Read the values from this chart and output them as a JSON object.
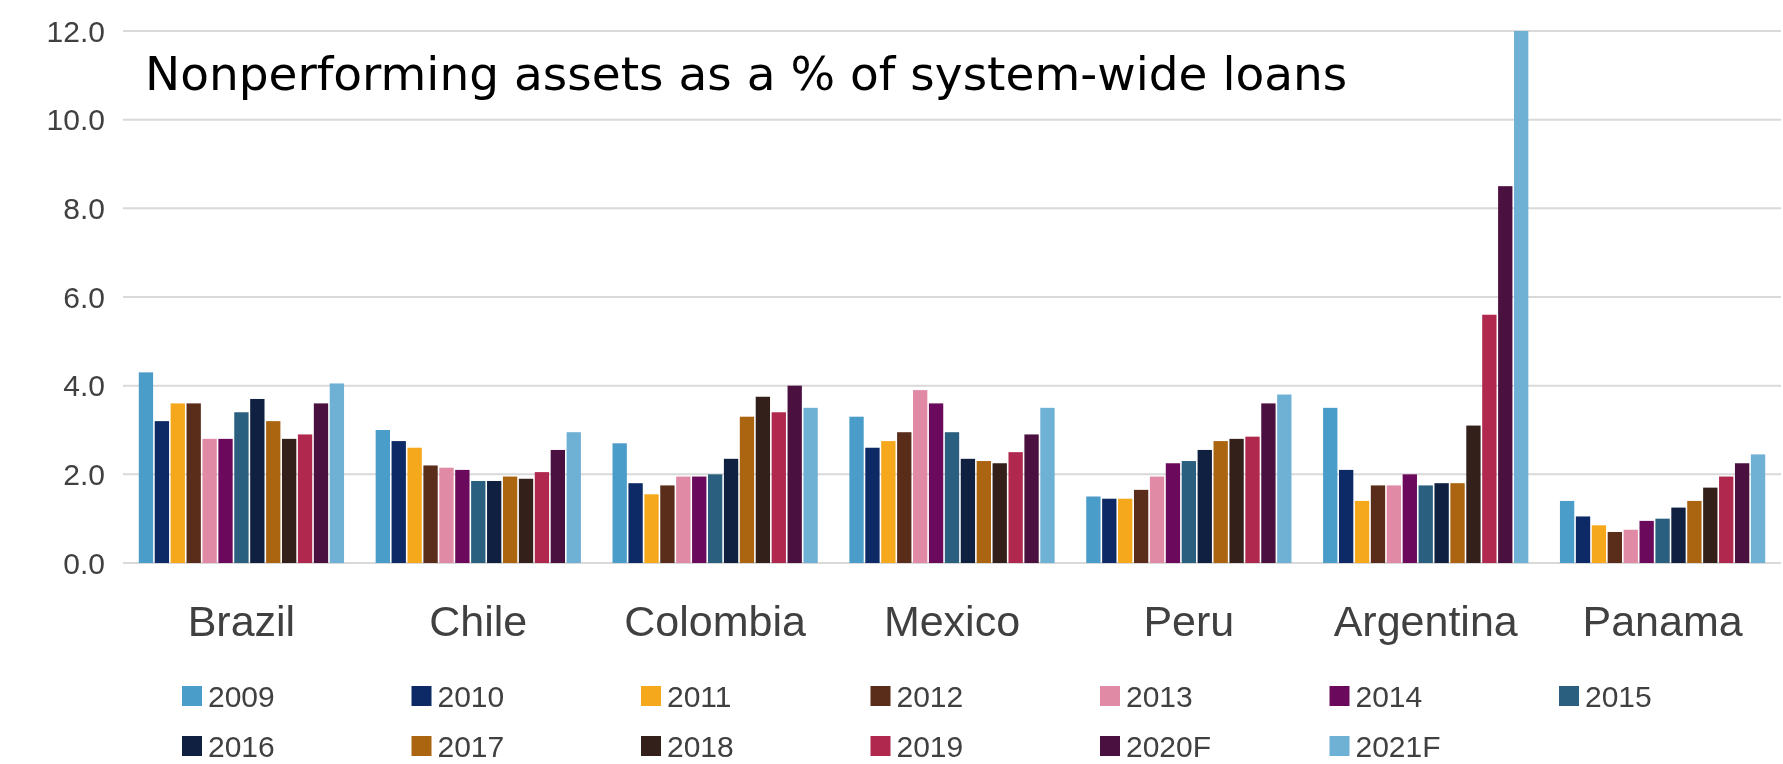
{
  "chart_data": {
    "type": "bar",
    "title": "Nonperforming assets as a % of system-wide loans",
    "categories": [
      "Brazil",
      "Chile",
      "Colombia",
      "Mexico",
      "Peru",
      "Argentina",
      "Panama"
    ],
    "series": [
      {
        "name": "2009",
        "color": "#4a9cc9",
        "values": [
          4.3,
          3.0,
          2.7,
          3.3,
          1.5,
          3.5,
          1.4
        ]
      },
      {
        "name": "2010",
        "color": "#0d2a66",
        "values": [
          3.2,
          2.75,
          1.8,
          2.6,
          1.45,
          2.1,
          1.05
        ]
      },
      {
        "name": "2011",
        "color": "#f5a81c",
        "values": [
          3.6,
          2.6,
          1.55,
          2.75,
          1.45,
          1.4,
          0.85
        ]
      },
      {
        "name": "2012",
        "color": "#5a2c1a",
        "values": [
          3.6,
          2.2,
          1.75,
          2.95,
          1.65,
          1.75,
          0.7
        ]
      },
      {
        "name": "2013",
        "color": "#e08aa6",
        "values": [
          2.8,
          2.15,
          1.95,
          3.9,
          1.95,
          1.75,
          0.75
        ]
      },
      {
        "name": "2014",
        "color": "#6b0a5c",
        "values": [
          2.8,
          2.1,
          1.95,
          3.6,
          2.25,
          2.0,
          0.95
        ]
      },
      {
        "name": "2015",
        "color": "#2a5f80",
        "values": [
          3.4,
          1.85,
          2.0,
          2.95,
          2.3,
          1.75,
          1.0
        ]
      },
      {
        "name": "2016",
        "color": "#0f2040",
        "values": [
          3.7,
          1.85,
          2.35,
          2.35,
          2.55,
          1.8,
          1.25
        ]
      },
      {
        "name": "2017",
        "color": "#ab6410",
        "values": [
          3.2,
          1.95,
          3.3,
          2.3,
          2.75,
          1.8,
          1.4
        ]
      },
      {
        "name": "2018",
        "color": "#33201a",
        "values": [
          2.8,
          1.9,
          3.75,
          2.25,
          2.8,
          3.1,
          1.7
        ]
      },
      {
        "name": "2019",
        "color": "#b0284e",
        "values": [
          2.9,
          2.05,
          3.4,
          2.5,
          2.85,
          5.6,
          1.95
        ]
      },
      {
        "name": "2020F",
        "color": "#4a1040",
        "values": [
          3.6,
          2.55,
          4.0,
          2.9,
          3.6,
          8.5,
          2.25
        ]
      },
      {
        "name": "2021F",
        "color": "#6fb0d5",
        "values": [
          4.05,
          2.95,
          3.5,
          3.5,
          3.8,
          12.0,
          2.45
        ]
      }
    ],
    "ylim": [
      0,
      12
    ],
    "yticks": [
      {
        "value": 0,
        "label": "0.0"
      },
      {
        "value": 2,
        "label": "2.0"
      },
      {
        "value": 4,
        "label": "4.0"
      },
      {
        "value": 6,
        "label": "6.0"
      },
      {
        "value": 8,
        "label": "8.0"
      },
      {
        "value": 10,
        "label": "10.0"
      },
      {
        "value": 12,
        "label": "12.0"
      }
    ],
    "grid": "y",
    "legend": "bottom"
  }
}
